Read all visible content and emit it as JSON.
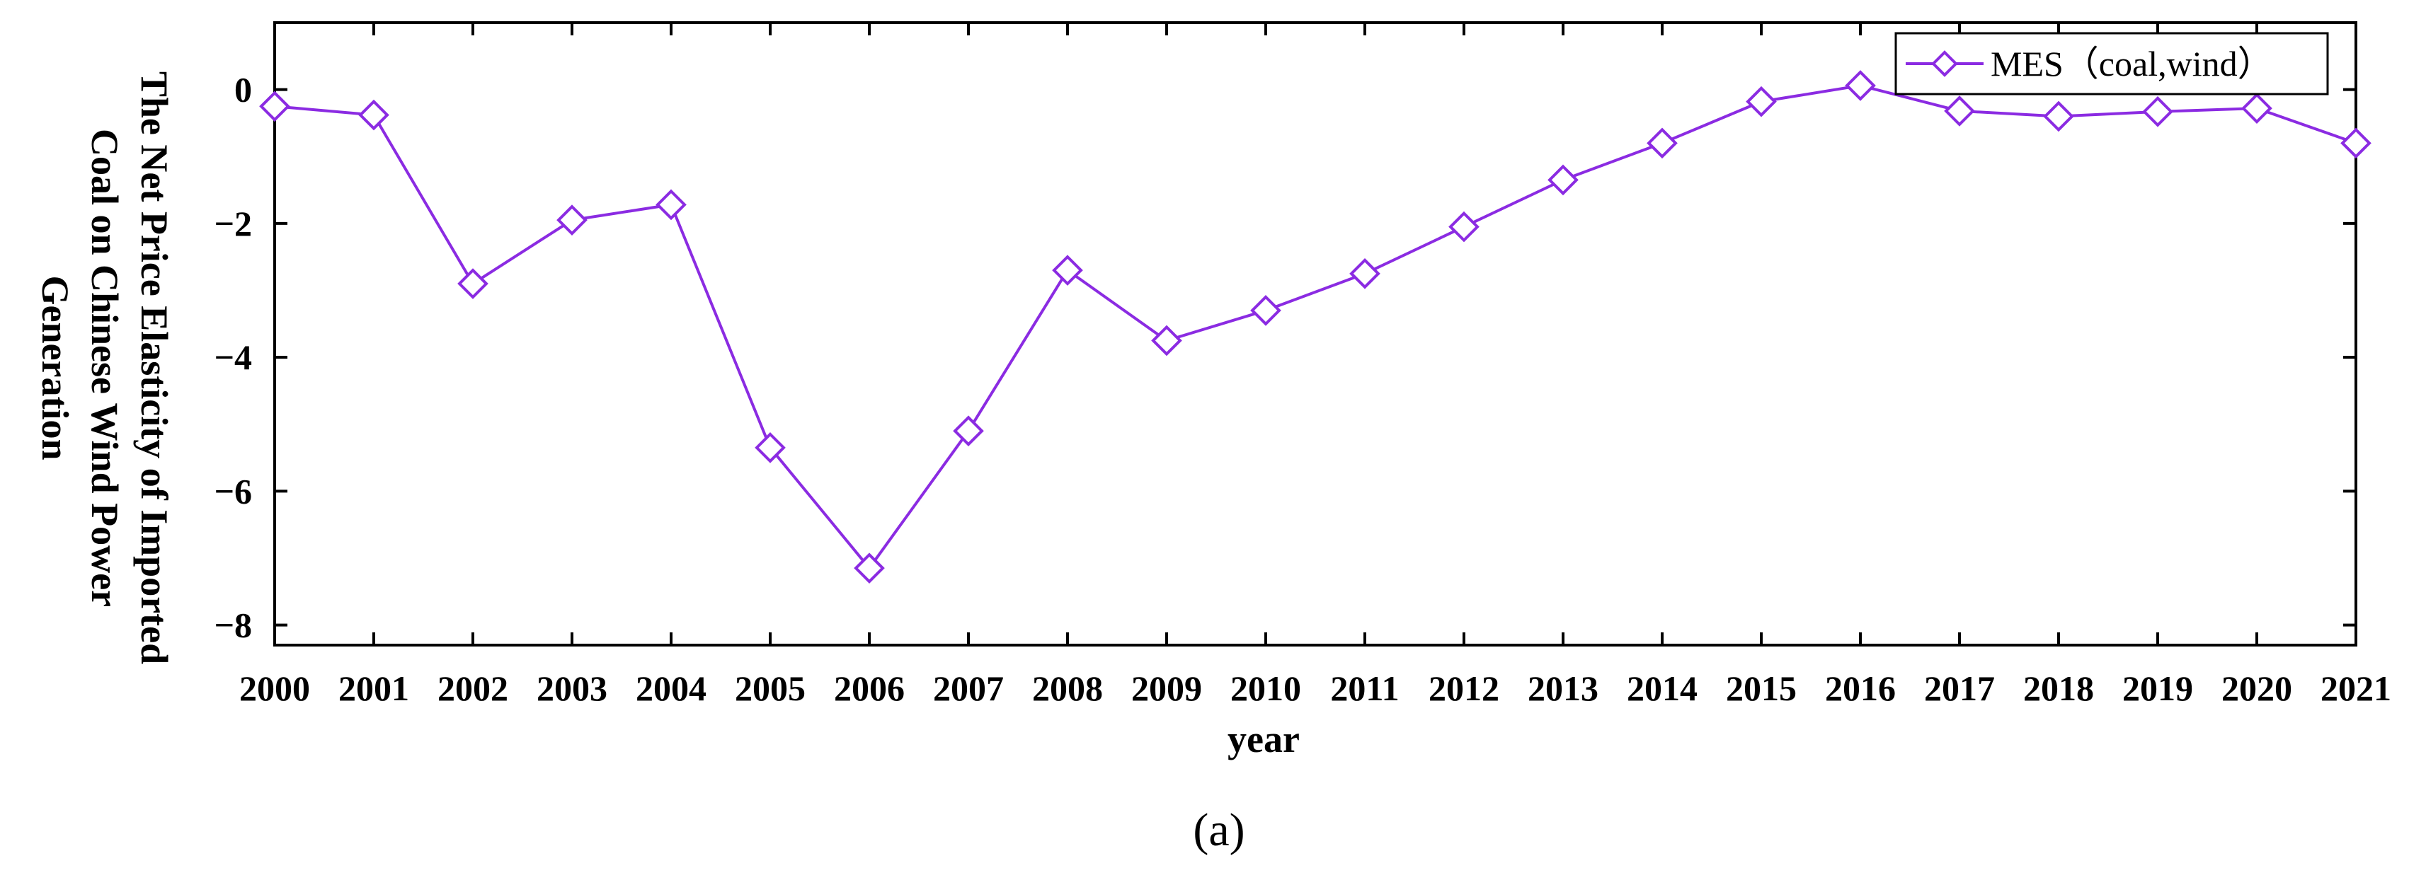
{
  "chart_data": {
    "type": "line",
    "xlabel": "year",
    "ylabel": "The Net Price Elasticity of Imported Coal on Chinese Wind Power Generation",
    "ylabel_lines": [
      "The Net Price Elasticity of Imported",
      "Coal on Chinese Wind Power",
      "Generation"
    ],
    "panel_label": "(a)",
    "categories": [
      "2000",
      "2001",
      "2002",
      "2003",
      "2004",
      "2005",
      "2006",
      "2007",
      "2008",
      "2009",
      "2010",
      "2011",
      "2012",
      "2013",
      "2014",
      "2015",
      "2016",
      "2017",
      "2018",
      "2019",
      "2020",
      "2021"
    ],
    "series": [
      {
        "name": "MES（coal,wind）",
        "color": "#8B2BE2",
        "marker": "diamond",
        "values": [
          -0.25,
          -0.38,
          -2.9,
          -1.95,
          -1.72,
          -5.35,
          -7.15,
          -5.1,
          -2.7,
          -3.75,
          -3.3,
          -2.75,
          -2.05,
          -1.35,
          -0.8,
          -0.18,
          0.06,
          -0.32,
          -0.4,
          -0.33,
          -0.28,
          -0.8
        ]
      }
    ],
    "ylim": [
      -8.3,
      1.0
    ],
    "yticks": [
      0,
      -2,
      -4,
      -6,
      -8
    ],
    "ytick_labels": [
      "0",
      "−2",
      "−4",
      "−6",
      "−8"
    ],
    "grid": false,
    "legend_position": "top-right"
  }
}
